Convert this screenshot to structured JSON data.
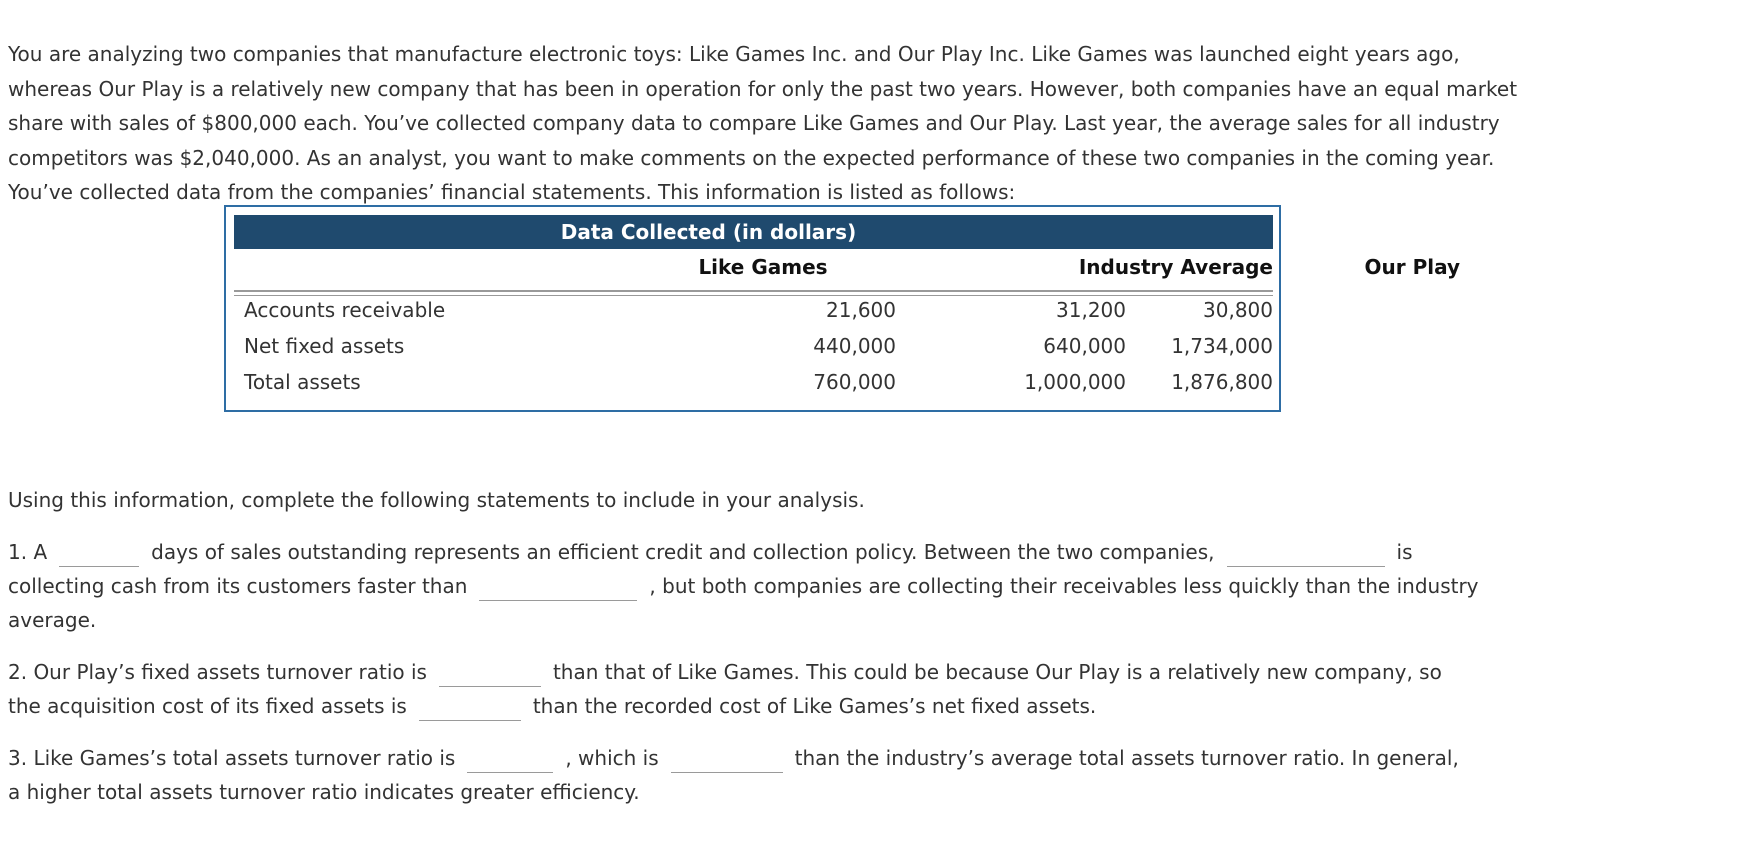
{
  "intro": "You are analyzing two companies that manufacture electronic toys: Like Games Inc. and Our Play Inc. Like Games was launched eight years ago, whereas Our Play is a relatively new company that has been in operation for only the past two years. However, both companies have an equal market share with sales of $800,000 each. You’ve collected company data to compare Like Games and Our Play. Last year, the average sales for all industry competitors was $2,040,000. As an analyst, you want to make comments on the expected performance of these two companies in the coming year. You’ve collected data from the companies’ financial statements. This information is listed as follows:",
  "table": {
    "title": "Data Collected (in dollars)",
    "columns": [
      "Like Games",
      "Our Play",
      "Industry Average"
    ],
    "rows": [
      {
        "label": "Accounts receivable",
        "values": [
          "21,600",
          "31,200",
          "30,800"
        ]
      },
      {
        "label": "Net fixed assets",
        "values": [
          "440,000",
          "640,000",
          "1,734,000"
        ]
      },
      {
        "label": "Total assets",
        "values": [
          "760,000",
          "1,000,000",
          "1,876,800"
        ]
      }
    ]
  },
  "instructions": "Using this information, complete the following statements to include in your analysis.",
  "q1": {
    "a": "1. A",
    "b": "days of sales outstanding represents an efficient credit and collection policy. Between the two companies,",
    "c": "is",
    "d": "collecting cash from its customers faster than",
    "e": ", but both companies are collecting their receivables less quickly than the industry",
    "f": "average."
  },
  "q2": {
    "a": "2. Our Play’s fixed assets turnover ratio is",
    "b": "than that of Like Games. This could be because Our Play is a relatively new company, so",
    "c": "the acquisition cost of its fixed assets is",
    "d": "than the recorded cost of Like Games’s net fixed assets."
  },
  "q3": {
    "a": "3. Like Games’s total assets turnover ratio is",
    "b": ", which is",
    "c": "than the industry’s average total assets turnover ratio. In general,",
    "d": "a higher total assets turnover ratio indicates greater efficiency."
  }
}
